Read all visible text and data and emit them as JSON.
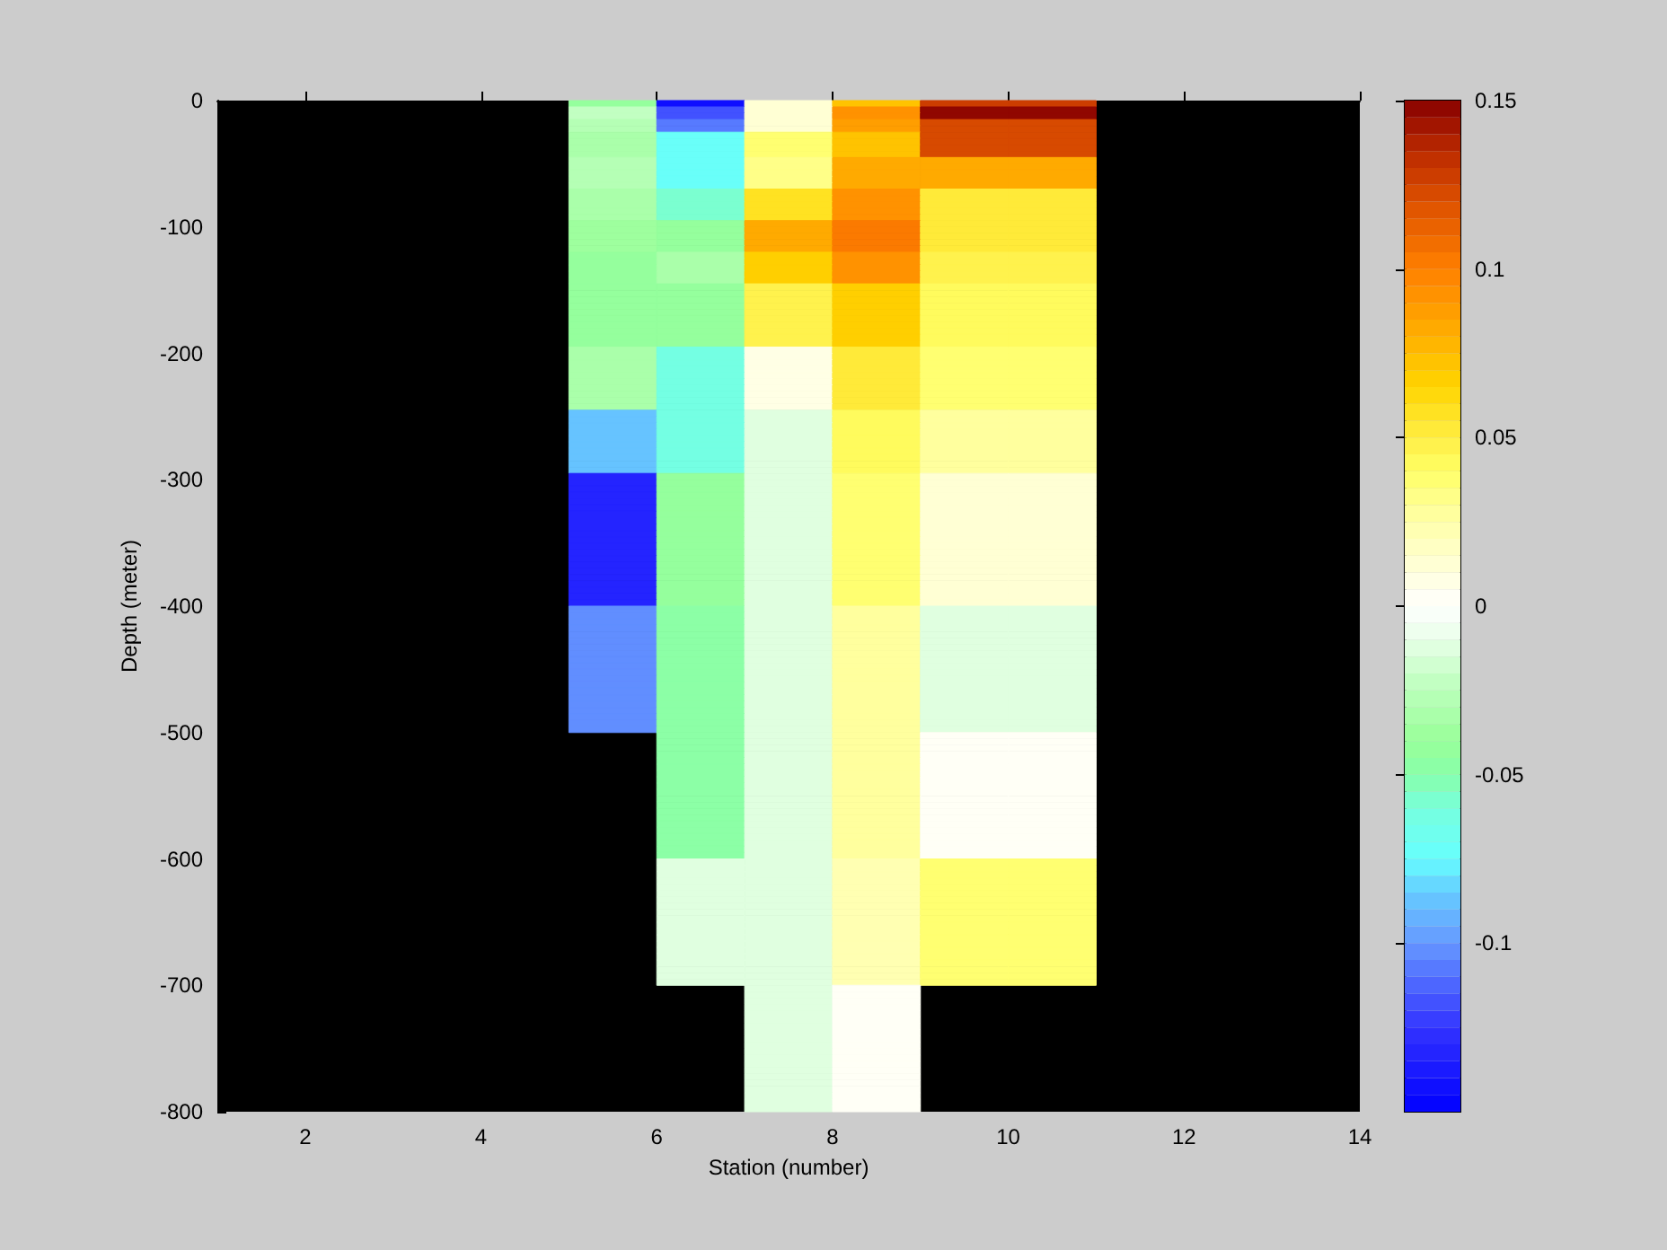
{
  "chart_data": {
    "type": "heatmap",
    "xlabel": "Station (number)",
    "ylabel": "Depth (meter)",
    "cells": [
      [
        null,
        null,
        null,
        null,
        -0.045,
        -0.145,
        0.01,
        0.07,
        0.125,
        0.125,
        null,
        null,
        null
      ],
      [
        null,
        null,
        null,
        null,
        -0.025,
        -0.12,
        0.01,
        0.09,
        0.145,
        0.145,
        null,
        null,
        null
      ],
      [
        null,
        null,
        null,
        null,
        -0.025,
        -0.12,
        0.01,
        0.09,
        0.145,
        0.145,
        null,
        null,
        null
      ],
      [
        null,
        null,
        null,
        null,
        -0.03,
        -0.11,
        0.01,
        0.085,
        0.12,
        0.12,
        null,
        null,
        null
      ],
      [
        null,
        null,
        null,
        null,
        -0.03,
        -0.11,
        0.01,
        0.085,
        0.12,
        0.12,
        null,
        null,
        null
      ],
      [
        null,
        null,
        null,
        null,
        -0.035,
        -0.075,
        0.035,
        0.07,
        0.12,
        0.12,
        null,
        null,
        null
      ],
      [
        null,
        null,
        null,
        null,
        -0.035,
        -0.075,
        0.035,
        0.07,
        0.12,
        0.12,
        null,
        null,
        null
      ],
      [
        null,
        null,
        null,
        null,
        -0.035,
        -0.075,
        0.035,
        0.07,
        0.12,
        0.12,
        null,
        null,
        null
      ],
      [
        null,
        null,
        null,
        null,
        -0.035,
        -0.075,
        0.035,
        0.07,
        0.12,
        0.12,
        null,
        null,
        null
      ],
      [
        null,
        null,
        null,
        null,
        -0.03,
        -0.075,
        0.03,
        0.08,
        0.08,
        0.08,
        null,
        null,
        null
      ],
      [
        null,
        null,
        null,
        null,
        -0.03,
        -0.075,
        0.03,
        0.08,
        0.08,
        0.08,
        null,
        null,
        null
      ],
      [
        null,
        null,
        null,
        null,
        -0.03,
        -0.075,
        0.03,
        0.08,
        0.08,
        0.08,
        null,
        null,
        null
      ],
      [
        null,
        null,
        null,
        null,
        -0.03,
        -0.075,
        0.03,
        0.08,
        0.08,
        0.08,
        null,
        null,
        null
      ],
      [
        null,
        null,
        null,
        null,
        -0.03,
        -0.075,
        0.03,
        0.08,
        0.08,
        0.08,
        null,
        null,
        null
      ],
      [
        null,
        null,
        null,
        null,
        -0.035,
        -0.06,
        0.055,
        0.09,
        0.05,
        0.05,
        null,
        null,
        null
      ],
      [
        null,
        null,
        null,
        null,
        -0.035,
        -0.06,
        0.055,
        0.09,
        0.05,
        0.05,
        null,
        null,
        null
      ],
      [
        null,
        null,
        null,
        null,
        -0.035,
        -0.06,
        0.055,
        0.09,
        0.05,
        0.05,
        null,
        null,
        null
      ],
      [
        null,
        null,
        null,
        null,
        -0.035,
        -0.06,
        0.055,
        0.09,
        0.05,
        0.05,
        null,
        null,
        null
      ],
      [
        null,
        null,
        null,
        null,
        -0.035,
        -0.06,
        0.055,
        0.09,
        0.05,
        0.05,
        null,
        null,
        null
      ],
      [
        null,
        null,
        null,
        null,
        -0.04,
        -0.045,
        0.08,
        0.1,
        0.05,
        0.05,
        null,
        null,
        null
      ],
      [
        null,
        null,
        null,
        null,
        -0.04,
        -0.045,
        0.08,
        0.1,
        0.05,
        0.05,
        null,
        null,
        null
      ],
      [
        null,
        null,
        null,
        null,
        -0.04,
        -0.045,
        0.08,
        0.1,
        0.05,
        0.05,
        null,
        null,
        null
      ],
      [
        null,
        null,
        null,
        null,
        -0.04,
        -0.045,
        0.08,
        0.1,
        0.05,
        0.05,
        null,
        null,
        null
      ],
      [
        null,
        null,
        null,
        null,
        -0.04,
        -0.045,
        0.08,
        0.1,
        0.05,
        0.05,
        null,
        null,
        null
      ],
      [
        null,
        null,
        null,
        null,
        -0.045,
        -0.035,
        0.065,
        0.09,
        0.045,
        0.045,
        null,
        null,
        null
      ],
      [
        null,
        null,
        null,
        null,
        -0.045,
        -0.035,
        0.065,
        0.09,
        0.045,
        0.045,
        null,
        null,
        null
      ],
      [
        null,
        null,
        null,
        null,
        -0.045,
        -0.035,
        0.065,
        0.09,
        0.045,
        0.045,
        null,
        null,
        null
      ],
      [
        null,
        null,
        null,
        null,
        -0.045,
        -0.035,
        0.065,
        0.09,
        0.045,
        0.045,
        null,
        null,
        null
      ],
      [
        null,
        null,
        null,
        null,
        -0.045,
        -0.035,
        0.065,
        0.09,
        0.045,
        0.045,
        null,
        null,
        null
      ],
      [
        null,
        null,
        null,
        null,
        -0.045,
        -0.045,
        0.045,
        0.065,
        0.04,
        0.04,
        null,
        null,
        null
      ],
      [
        null,
        null,
        null,
        null,
        -0.045,
        -0.045,
        0.045,
        0.065,
        0.04,
        0.04,
        null,
        null,
        null
      ],
      [
        null,
        null,
        null,
        null,
        -0.045,
        -0.045,
        0.045,
        0.065,
        0.04,
        0.04,
        null,
        null,
        null
      ],
      [
        null,
        null,
        null,
        null,
        -0.045,
        -0.045,
        0.045,
        0.065,
        0.04,
        0.04,
        null,
        null,
        null
      ],
      [
        null,
        null,
        null,
        null,
        -0.045,
        -0.045,
        0.045,
        0.065,
        0.04,
        0.04,
        null,
        null,
        null
      ],
      [
        null,
        null,
        null,
        null,
        -0.045,
        -0.045,
        0.045,
        0.065,
        0.04,
        0.04,
        null,
        null,
        null
      ],
      [
        null,
        null,
        null,
        null,
        -0.045,
        -0.045,
        0.045,
        0.065,
        0.04,
        0.04,
        null,
        null,
        null
      ],
      [
        null,
        null,
        null,
        null,
        -0.045,
        -0.045,
        0.045,
        0.065,
        0.04,
        0.04,
        null,
        null,
        null
      ],
      [
        null,
        null,
        null,
        null,
        -0.045,
        -0.045,
        0.045,
        0.065,
        0.04,
        0.04,
        null,
        null,
        null
      ],
      [
        null,
        null,
        null,
        null,
        -0.045,
        -0.045,
        0.045,
        0.065,
        0.04,
        0.04,
        null,
        null,
        null
      ],
      [
        null,
        null,
        null,
        null,
        -0.035,
        -0.065,
        0.005,
        0.05,
        0.035,
        0.035,
        null,
        null,
        null
      ],
      [
        null,
        null,
        null,
        null,
        -0.035,
        -0.065,
        0.005,
        0.05,
        0.035,
        0.035,
        null,
        null,
        null
      ],
      [
        null,
        null,
        null,
        null,
        -0.035,
        -0.065,
        0.005,
        0.05,
        0.035,
        0.035,
        null,
        null,
        null
      ],
      [
        null,
        null,
        null,
        null,
        -0.035,
        -0.065,
        0.005,
        0.05,
        0.035,
        0.035,
        null,
        null,
        null
      ],
      [
        null,
        null,
        null,
        null,
        -0.035,
        -0.065,
        0.005,
        0.05,
        0.035,
        0.035,
        null,
        null,
        null
      ],
      [
        null,
        null,
        null,
        null,
        -0.035,
        -0.065,
        0.005,
        0.05,
        0.035,
        0.035,
        null,
        null,
        null
      ],
      [
        null,
        null,
        null,
        null,
        -0.035,
        -0.065,
        0.005,
        0.05,
        0.035,
        0.035,
        null,
        null,
        null
      ],
      [
        null,
        null,
        null,
        null,
        -0.035,
        -0.065,
        0.005,
        0.05,
        0.035,
        0.035,
        null,
        null,
        null
      ],
      [
        null,
        null,
        null,
        null,
        -0.035,
        -0.065,
        0.005,
        0.05,
        0.035,
        0.035,
        null,
        null,
        null
      ],
      [
        null,
        null,
        null,
        null,
        -0.035,
        -0.065,
        0.005,
        0.05,
        0.035,
        0.035,
        null,
        null,
        null
      ],
      [
        null,
        null,
        null,
        null,
        -0.085,
        -0.065,
        -0.01,
        0.04,
        0.025,
        0.025,
        null,
        null,
        null
      ],
      [
        null,
        null,
        null,
        null,
        -0.085,
        -0.065,
        -0.01,
        0.04,
        0.025,
        0.025,
        null,
        null,
        null
      ],
      [
        null,
        null,
        null,
        null,
        -0.085,
        -0.065,
        -0.01,
        0.04,
        0.025,
        0.025,
        null,
        null,
        null
      ],
      [
        null,
        null,
        null,
        null,
        -0.085,
        -0.065,
        -0.01,
        0.04,
        0.025,
        0.025,
        null,
        null,
        null
      ],
      [
        null,
        null,
        null,
        null,
        -0.085,
        -0.065,
        -0.01,
        0.04,
        0.025,
        0.025,
        null,
        null,
        null
      ],
      [
        null,
        null,
        null,
        null,
        -0.085,
        -0.065,
        -0.01,
        0.04,
        0.025,
        0.025,
        null,
        null,
        null
      ],
      [
        null,
        null,
        null,
        null,
        -0.085,
        -0.065,
        -0.01,
        0.04,
        0.025,
        0.025,
        null,
        null,
        null
      ],
      [
        null,
        null,
        null,
        null,
        -0.085,
        -0.065,
        -0.01,
        0.04,
        0.025,
        0.025,
        null,
        null,
        null
      ],
      [
        null,
        null,
        null,
        null,
        -0.085,
        -0.065,
        -0.01,
        0.04,
        0.025,
        0.025,
        null,
        null,
        null
      ],
      [
        null,
        null,
        null,
        null,
        -0.085,
        -0.065,
        -0.01,
        0.04,
        0.025,
        0.025,
        null,
        null,
        null
      ],
      [
        null,
        null,
        null,
        null,
        -0.13,
        -0.045,
        -0.01,
        0.035,
        0.015,
        0.015,
        null,
        null,
        null
      ],
      [
        null,
        null,
        null,
        null,
        -0.13,
        -0.045,
        -0.01,
        0.035,
        0.015,
        0.015,
        null,
        null,
        null
      ],
      [
        null,
        null,
        null,
        null,
        -0.13,
        -0.045,
        -0.01,
        0.035,
        0.015,
        0.015,
        null,
        null,
        null
      ],
      [
        null,
        null,
        null,
        null,
        -0.13,
        -0.045,
        -0.01,
        0.035,
        0.015,
        0.015,
        null,
        null,
        null
      ],
      [
        null,
        null,
        null,
        null,
        -0.13,
        -0.045,
        -0.01,
        0.035,
        0.015,
        0.015,
        null,
        null,
        null
      ],
      [
        null,
        null,
        null,
        null,
        -0.13,
        -0.045,
        -0.01,
        0.035,
        0.015,
        0.015,
        null,
        null,
        null
      ],
      [
        null,
        null,
        null,
        null,
        -0.13,
        -0.045,
        -0.01,
        0.035,
        0.015,
        0.015,
        null,
        null,
        null
      ],
      [
        null,
        null,
        null,
        null,
        -0.13,
        -0.045,
        -0.01,
        0.035,
        0.015,
        0.015,
        null,
        null,
        null
      ],
      [
        null,
        null,
        null,
        null,
        -0.13,
        -0.045,
        -0.01,
        0.035,
        0.015,
        0.015,
        null,
        null,
        null
      ],
      [
        null,
        null,
        null,
        null,
        -0.13,
        -0.045,
        -0.01,
        0.035,
        0.015,
        0.015,
        null,
        null,
        null
      ],
      [
        null,
        null,
        null,
        null,
        -0.13,
        -0.045,
        -0.01,
        0.035,
        0.015,
        0.015,
        null,
        null,
        null
      ],
      [
        null,
        null,
        null,
        null,
        -0.13,
        -0.045,
        -0.01,
        0.035,
        0.015,
        0.015,
        null,
        null,
        null
      ],
      [
        null,
        null,
        null,
        null,
        -0.13,
        -0.045,
        -0.01,
        0.035,
        0.015,
        0.015,
        null,
        null,
        null
      ],
      [
        null,
        null,
        null,
        null,
        -0.13,
        -0.045,
        -0.01,
        0.035,
        0.015,
        0.015,
        null,
        null,
        null
      ],
      [
        null,
        null,
        null,
        null,
        -0.13,
        -0.045,
        -0.01,
        0.035,
        0.015,
        0.015,
        null,
        null,
        null
      ],
      [
        null,
        null,
        null,
        null,
        -0.13,
        -0.045,
        -0.01,
        0.035,
        0.015,
        0.015,
        null,
        null,
        null
      ],
      [
        null,
        null,
        null,
        null,
        -0.13,
        -0.045,
        -0.01,
        0.035,
        0.015,
        0.015,
        null,
        null,
        null
      ],
      [
        null,
        null,
        null,
        null,
        -0.13,
        -0.045,
        -0.01,
        0.035,
        0.015,
        0.015,
        null,
        null,
        null
      ],
      [
        null,
        null,
        null,
        null,
        -0.13,
        -0.045,
        -0.01,
        0.035,
        0.015,
        0.015,
        null,
        null,
        null
      ],
      [
        null,
        null,
        null,
        null,
        -0.13,
        -0.045,
        -0.01,
        0.035,
        0.015,
        0.015,
        null,
        null,
        null
      ],
      [
        null,
        null,
        null,
        null,
        -0.13,
        -0.045,
        -0.01,
        0.035,
        0.015,
        0.015,
        null,
        null,
        null
      ],
      [
        null,
        null,
        null,
        null,
        -0.1,
        -0.05,
        -0.015,
        0.025,
        -0.01,
        -0.01,
        null,
        null,
        null
      ],
      [
        null,
        null,
        null,
        null,
        -0.1,
        -0.05,
        -0.015,
        0.025,
        -0.01,
        -0.01,
        null,
        null,
        null
      ],
      [
        null,
        null,
        null,
        null,
        -0.1,
        -0.05,
        -0.015,
        0.025,
        -0.01,
        -0.01,
        null,
        null,
        null
      ],
      [
        null,
        null,
        null,
        null,
        -0.1,
        -0.05,
        -0.015,
        0.025,
        -0.01,
        -0.01,
        null,
        null,
        null
      ],
      [
        null,
        null,
        null,
        null,
        -0.1,
        -0.05,
        -0.015,
        0.025,
        -0.01,
        -0.01,
        null,
        null,
        null
      ],
      [
        null,
        null,
        null,
        null,
        -0.1,
        -0.05,
        -0.015,
        0.025,
        -0.01,
        -0.01,
        null,
        null,
        null
      ],
      [
        null,
        null,
        null,
        null,
        -0.1,
        -0.05,
        -0.015,
        0.025,
        -0.01,
        -0.01,
        null,
        null,
        null
      ],
      [
        null,
        null,
        null,
        null,
        -0.1,
        -0.05,
        -0.015,
        0.025,
        -0.01,
        -0.01,
        null,
        null,
        null
      ],
      [
        null,
        null,
        null,
        null,
        -0.1,
        -0.05,
        -0.015,
        0.025,
        -0.01,
        -0.01,
        null,
        null,
        null
      ],
      [
        null,
        null,
        null,
        null,
        -0.1,
        -0.05,
        -0.015,
        0.025,
        -0.01,
        -0.01,
        null,
        null,
        null
      ],
      [
        null,
        null,
        null,
        null,
        -0.1,
        -0.05,
        -0.015,
        0.025,
        -0.01,
        -0.01,
        null,
        null,
        null
      ],
      [
        null,
        null,
        null,
        null,
        -0.1,
        -0.05,
        -0.015,
        0.025,
        -0.01,
        -0.01,
        null,
        null,
        null
      ],
      [
        null,
        null,
        null,
        null,
        -0.1,
        -0.05,
        -0.015,
        0.025,
        -0.01,
        -0.01,
        null,
        null,
        null
      ],
      [
        null,
        null,
        null,
        null,
        -0.1,
        -0.05,
        -0.015,
        0.025,
        -0.01,
        -0.01,
        null,
        null,
        null
      ],
      [
        null,
        null,
        null,
        null,
        -0.1,
        -0.05,
        -0.015,
        0.025,
        -0.01,
        -0.01,
        null,
        null,
        null
      ],
      [
        null,
        null,
        null,
        null,
        -0.1,
        -0.05,
        -0.015,
        0.025,
        -0.01,
        -0.01,
        null,
        null,
        null
      ],
      [
        null,
        null,
        null,
        null,
        -0.1,
        -0.05,
        -0.015,
        0.025,
        -0.01,
        -0.01,
        null,
        null,
        null
      ],
      [
        null,
        null,
        null,
        null,
        -0.1,
        -0.05,
        -0.015,
        0.025,
        -0.01,
        -0.01,
        null,
        null,
        null
      ],
      [
        null,
        null,
        null,
        null,
        -0.1,
        -0.05,
        -0.015,
        0.025,
        -0.01,
        -0.01,
        null,
        null,
        null
      ],
      [
        null,
        null,
        null,
        null,
        -0.1,
        -0.05,
        -0.015,
        0.025,
        -0.01,
        -0.01,
        null,
        null,
        null
      ],
      [
        null,
        null,
        null,
        null,
        null,
        -0.05,
        -0.015,
        0.025,
        0,
        0,
        null,
        null,
        null
      ],
      [
        null,
        null,
        null,
        null,
        null,
        -0.05,
        -0.015,
        0.025,
        0,
        0,
        null,
        null,
        null
      ],
      [
        null,
        null,
        null,
        null,
        null,
        -0.05,
        -0.015,
        0.025,
        0,
        0,
        null,
        null,
        null
      ],
      [
        null,
        null,
        null,
        null,
        null,
        -0.05,
        -0.015,
        0.025,
        0,
        0,
        null,
        null,
        null
      ],
      [
        null,
        null,
        null,
        null,
        null,
        -0.05,
        -0.015,
        0.025,
        0,
        0,
        null,
        null,
        null
      ],
      [
        null,
        null,
        null,
        null,
        null,
        -0.05,
        -0.015,
        0.025,
        0,
        0,
        null,
        null,
        null
      ],
      [
        null,
        null,
        null,
        null,
        null,
        -0.05,
        -0.015,
        0.025,
        0,
        0,
        null,
        null,
        null
      ],
      [
        null,
        null,
        null,
        null,
        null,
        -0.05,
        -0.015,
        0.025,
        0,
        0,
        null,
        null,
        null
      ],
      [
        null,
        null,
        null,
        null,
        null,
        -0.05,
        -0.015,
        0.025,
        0,
        0,
        null,
        null,
        null
      ],
      [
        null,
        null,
        null,
        null,
        null,
        -0.05,
        -0.015,
        0.025,
        0,
        0,
        null,
        null,
        null
      ],
      [
        null,
        null,
        null,
        null,
        null,
        -0.05,
        -0.015,
        0.025,
        0,
        0,
        null,
        null,
        null
      ],
      [
        null,
        null,
        null,
        null,
        null,
        -0.05,
        -0.015,
        0.025,
        0,
        0,
        null,
        null,
        null
      ],
      [
        null,
        null,
        null,
        null,
        null,
        -0.05,
        -0.015,
        0.025,
        0,
        0,
        null,
        null,
        null
      ],
      [
        null,
        null,
        null,
        null,
        null,
        -0.05,
        -0.015,
        0.025,
        0,
        0,
        null,
        null,
        null
      ],
      [
        null,
        null,
        null,
        null,
        null,
        -0.05,
        -0.015,
        0.025,
        0,
        0,
        null,
        null,
        null
      ],
      [
        null,
        null,
        null,
        null,
        null,
        -0.05,
        -0.015,
        0.025,
        0,
        0,
        null,
        null,
        null
      ],
      [
        null,
        null,
        null,
        null,
        null,
        -0.05,
        -0.015,
        0.025,
        0,
        0,
        null,
        null,
        null
      ],
      [
        null,
        null,
        null,
        null,
        null,
        -0.05,
        -0.015,
        0.025,
        0,
        0,
        null,
        null,
        null
      ],
      [
        null,
        null,
        null,
        null,
        null,
        -0.05,
        -0.015,
        0.025,
        0,
        0,
        null,
        null,
        null
      ],
      [
        null,
        null,
        null,
        null,
        null,
        -0.05,
        -0.015,
        0.025,
        0,
        0,
        null,
        null,
        null
      ],
      [
        null,
        null,
        null,
        null,
        null,
        -0.015,
        -0.01,
        0.02,
        0.035,
        0.035,
        null,
        null,
        null
      ],
      [
        null,
        null,
        null,
        null,
        null,
        -0.015,
        -0.01,
        0.02,
        0.035,
        0.035,
        null,
        null,
        null
      ],
      [
        null,
        null,
        null,
        null,
        null,
        -0.015,
        -0.01,
        0.02,
        0.035,
        0.035,
        null,
        null,
        null
      ],
      [
        null,
        null,
        null,
        null,
        null,
        -0.015,
        -0.01,
        0.02,
        0.035,
        0.035,
        null,
        null,
        null
      ],
      [
        null,
        null,
        null,
        null,
        null,
        -0.015,
        -0.01,
        0.02,
        0.035,
        0.035,
        null,
        null,
        null
      ],
      [
        null,
        null,
        null,
        null,
        null,
        -0.015,
        -0.01,
        0.02,
        0.035,
        0.035,
        null,
        null,
        null
      ],
      [
        null,
        null,
        null,
        null,
        null,
        -0.015,
        -0.01,
        0.02,
        0.035,
        0.035,
        null,
        null,
        null
      ],
      [
        null,
        null,
        null,
        null,
        null,
        -0.015,
        -0.01,
        0.02,
        0.035,
        0.035,
        null,
        null,
        null
      ],
      [
        null,
        null,
        null,
        null,
        null,
        -0.015,
        -0.01,
        0.02,
        0.035,
        0.035,
        null,
        null,
        null
      ],
      [
        null,
        null,
        null,
        null,
        null,
        -0.015,
        -0.01,
        0.02,
        0.035,
        0.035,
        null,
        null,
        null
      ],
      [
        null,
        null,
        null,
        null,
        null,
        -0.015,
        -0.01,
        0.02,
        0.035,
        0.035,
        null,
        null,
        null
      ],
      [
        null,
        null,
        null,
        null,
        null,
        -0.015,
        -0.01,
        0.02,
        0.035,
        0.035,
        null,
        null,
        null
      ],
      [
        null,
        null,
        null,
        null,
        null,
        -0.015,
        -0.01,
        0.02,
        0.035,
        0.035,
        null,
        null,
        null
      ],
      [
        null,
        null,
        null,
        null,
        null,
        -0.015,
        -0.01,
        0.02,
        0.035,
        0.035,
        null,
        null,
        null
      ],
      [
        null,
        null,
        null,
        null,
        null,
        -0.015,
        -0.01,
        0.02,
        0.035,
        0.035,
        null,
        null,
        null
      ],
      [
        null,
        null,
        null,
        null,
        null,
        -0.015,
        -0.01,
        0.02,
        0.035,
        0.035,
        null,
        null,
        null
      ],
      [
        null,
        null,
        null,
        null,
        null,
        -0.015,
        -0.01,
        0.02,
        0.035,
        0.035,
        null,
        null,
        null
      ],
      [
        null,
        null,
        null,
        null,
        null,
        -0.015,
        -0.01,
        0.02,
        0.035,
        0.035,
        null,
        null,
        null
      ],
      [
        null,
        null,
        null,
        null,
        null,
        -0.015,
        -0.01,
        0.02,
        0.035,
        0.035,
        null,
        null,
        null
      ],
      [
        null,
        null,
        null,
        null,
        null,
        -0.015,
        -0.01,
        0.02,
        0.035,
        0.035,
        null,
        null,
        null
      ],
      [
        null,
        null,
        null,
        null,
        null,
        null,
        -0.01,
        0,
        null,
        null,
        null,
        null,
        null
      ],
      [
        null,
        null,
        null,
        null,
        null,
        null,
        -0.01,
        0,
        null,
        null,
        null,
        null,
        null
      ],
      [
        null,
        null,
        null,
        null,
        null,
        null,
        -0.01,
        0,
        null,
        null,
        null,
        null,
        null
      ],
      [
        null,
        null,
        null,
        null,
        null,
        null,
        -0.01,
        0,
        null,
        null,
        null,
        null,
        null
      ],
      [
        null,
        null,
        null,
        null,
        null,
        null,
        -0.01,
        0,
        null,
        null,
        null,
        null,
        null
      ],
      [
        null,
        null,
        null,
        null,
        null,
        null,
        -0.01,
        0,
        null,
        null,
        null,
        null,
        null
      ],
      [
        null,
        null,
        null,
        null,
        null,
        null,
        -0.01,
        0,
        null,
        null,
        null,
        null,
        null
      ],
      [
        null,
        null,
        null,
        null,
        null,
        null,
        -0.01,
        0,
        null,
        null,
        null,
        null,
        null
      ],
      [
        null,
        null,
        null,
        null,
        null,
        null,
        -0.01,
        0,
        null,
        null,
        null,
        null,
        null
      ],
      [
        null,
        null,
        null,
        null,
        null,
        null,
        -0.01,
        0,
        null,
        null,
        null,
        null,
        null
      ],
      [
        null,
        null,
        null,
        null,
        null,
        null,
        -0.01,
        0,
        null,
        null,
        null,
        null,
        null
      ],
      [
        null,
        null,
        null,
        null,
        null,
        null,
        -0.01,
        0,
        null,
        null,
        null,
        null,
        null
      ],
      [
        null,
        null,
        null,
        null,
        null,
        null,
        -0.01,
        0,
        null,
        null,
        null,
        null,
        null
      ],
      [
        null,
        null,
        null,
        null,
        null,
        null,
        -0.01,
        0,
        null,
        null,
        null,
        null,
        null
      ],
      [
        null,
        null,
        null,
        null,
        null,
        null,
        -0.01,
        0,
        null,
        null,
        null,
        null,
        null
      ],
      [
        null,
        null,
        null,
        null,
        null,
        null,
        -0.01,
        0,
        null,
        null,
        null,
        null,
        null
      ],
      [
        null,
        null,
        null,
        null,
        null,
        null,
        -0.01,
        0,
        null,
        null,
        null,
        null,
        null
      ],
      [
        null,
        null,
        null,
        null,
        null,
        null,
        -0.01,
        0,
        null,
        null,
        null,
        null,
        null
      ],
      [
        null,
        null,
        null,
        null,
        null,
        null,
        -0.01,
        0,
        null,
        null,
        null,
        null,
        null
      ],
      [
        null,
        null,
        null,
        null,
        null,
        null,
        -0.01,
        0,
        null,
        null,
        null,
        null,
        null
      ]
    ],
    "xlim": [
      1,
      14
    ],
    "xticks": [
      2,
      4,
      6,
      8,
      10,
      12,
      14
    ],
    "ylim": [
      -800,
      0
    ],
    "yticks": [
      -800,
      -700,
      -600,
      -500,
      -400,
      -300,
      -200,
      -100,
      0
    ],
    "clim": [
      -0.15,
      0.15
    ],
    "cticks": [
      -0.1,
      -0.05,
      0,
      0.05,
      0.1,
      0.15
    ]
  }
}
